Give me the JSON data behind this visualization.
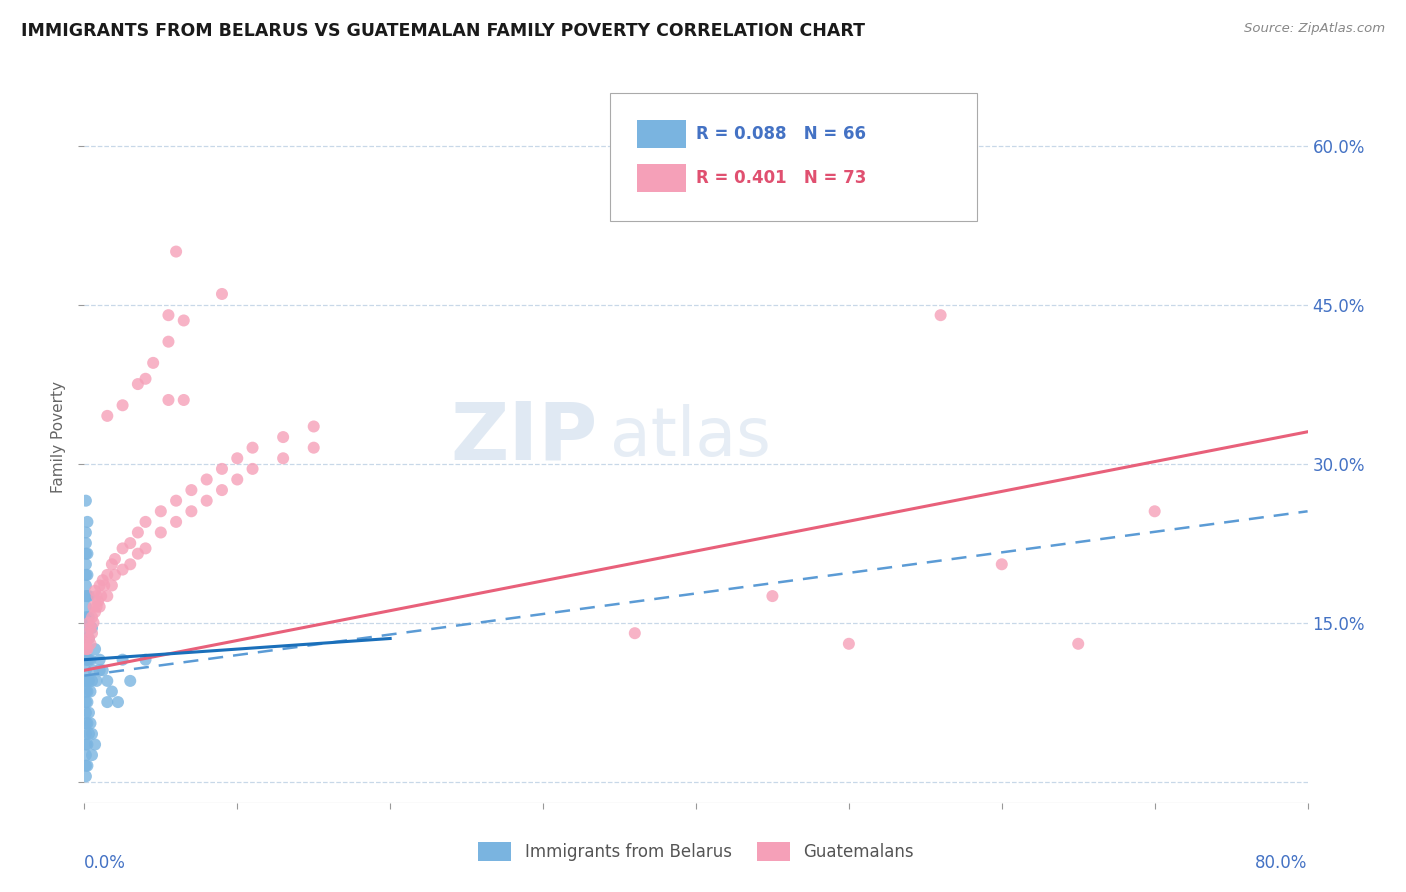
{
  "title": "IMMIGRANTS FROM BELARUS VS GUATEMALAN FAMILY POVERTY CORRELATION CHART",
  "source": "Source: ZipAtlas.com",
  "ylabel": "Family Poverty",
  "y_ticks": [
    0.0,
    0.15,
    0.3,
    0.45,
    0.6
  ],
  "y_tick_labels": [
    "",
    "15.0%",
    "30.0%",
    "45.0%",
    "60.0%"
  ],
  "x_range": [
    0.0,
    0.8
  ],
  "y_range": [
    -0.02,
    0.67
  ],
  "watermark_zip": "ZIP",
  "watermark_atlas": "atlas",
  "color_blue": "#7ab4e0",
  "color_pink": "#f5a0b8",
  "color_blue_line": "#5b9bd5",
  "color_pink_line": "#e8607a",
  "grid_color": "#c8d8e8",
  "tick_color": "#4472c4",
  "title_color": "#1a1a1a",
  "source_color": "#888888",
  "ylabel_color": "#666666",
  "blue_trend": [
    0.0,
    0.115,
    0.2,
    0.135
  ],
  "pink_trend": [
    0.0,
    0.105,
    0.8,
    0.33
  ],
  "blue_dash_trend": [
    0.0,
    0.1,
    0.8,
    0.255
  ],
  "scatter_blue": [
    [
      0.001,
      0.265
    ],
    [
      0.001,
      0.235
    ],
    [
      0.001,
      0.225
    ],
    [
      0.001,
      0.215
    ],
    [
      0.001,
      0.205
    ],
    [
      0.001,
      0.195
    ],
    [
      0.001,
      0.185
    ],
    [
      0.001,
      0.175
    ],
    [
      0.001,
      0.165
    ],
    [
      0.001,
      0.155
    ],
    [
      0.001,
      0.145
    ],
    [
      0.001,
      0.135
    ],
    [
      0.001,
      0.125
    ],
    [
      0.001,
      0.115
    ],
    [
      0.001,
      0.105
    ],
    [
      0.001,
      0.095
    ],
    [
      0.001,
      0.085
    ],
    [
      0.001,
      0.075
    ],
    [
      0.001,
      0.065
    ],
    [
      0.001,
      0.055
    ],
    [
      0.001,
      0.045
    ],
    [
      0.001,
      0.035
    ],
    [
      0.001,
      0.025
    ],
    [
      0.001,
      0.015
    ],
    [
      0.001,
      0.005
    ],
    [
      0.002,
      0.245
    ],
    [
      0.002,
      0.215
    ],
    [
      0.002,
      0.195
    ],
    [
      0.002,
      0.175
    ],
    [
      0.002,
      0.155
    ],
    [
      0.002,
      0.135
    ],
    [
      0.002,
      0.115
    ],
    [
      0.002,
      0.095
    ],
    [
      0.002,
      0.075
    ],
    [
      0.002,
      0.055
    ],
    [
      0.002,
      0.035
    ],
    [
      0.002,
      0.015
    ],
    [
      0.003,
      0.175
    ],
    [
      0.003,
      0.155
    ],
    [
      0.003,
      0.135
    ],
    [
      0.003,
      0.115
    ],
    [
      0.003,
      0.095
    ],
    [
      0.004,
      0.115
    ],
    [
      0.004,
      0.085
    ],
    [
      0.005,
      0.145
    ],
    [
      0.005,
      0.095
    ],
    [
      0.006,
      0.105
    ],
    [
      0.007,
      0.125
    ],
    [
      0.008,
      0.095
    ],
    [
      0.01,
      0.115
    ],
    [
      0.012,
      0.105
    ],
    [
      0.015,
      0.095
    ],
    [
      0.018,
      0.085
    ],
    [
      0.022,
      0.075
    ],
    [
      0.002,
      0.085
    ],
    [
      0.003,
      0.065
    ],
    [
      0.004,
      0.055
    ],
    [
      0.005,
      0.045
    ],
    [
      0.003,
      0.045
    ],
    [
      0.005,
      0.025
    ],
    [
      0.007,
      0.035
    ],
    [
      0.01,
      0.105
    ],
    [
      0.015,
      0.075
    ],
    [
      0.025,
      0.115
    ],
    [
      0.03,
      0.095
    ],
    [
      0.04,
      0.115
    ]
  ],
  "scatter_pink": [
    [
      0.001,
      0.13
    ],
    [
      0.001,
      0.125
    ],
    [
      0.002,
      0.14
    ],
    [
      0.002,
      0.125
    ],
    [
      0.003,
      0.15
    ],
    [
      0.003,
      0.135
    ],
    [
      0.004,
      0.145
    ],
    [
      0.004,
      0.13
    ],
    [
      0.005,
      0.155
    ],
    [
      0.005,
      0.14
    ],
    [
      0.006,
      0.165
    ],
    [
      0.006,
      0.15
    ],
    [
      0.007,
      0.18
    ],
    [
      0.007,
      0.16
    ],
    [
      0.008,
      0.175
    ],
    [
      0.008,
      0.165
    ],
    [
      0.009,
      0.17
    ],
    [
      0.01,
      0.185
    ],
    [
      0.01,
      0.165
    ],
    [
      0.011,
      0.175
    ],
    [
      0.012,
      0.19
    ],
    [
      0.013,
      0.185
    ],
    [
      0.015,
      0.195
    ],
    [
      0.015,
      0.175
    ],
    [
      0.018,
      0.205
    ],
    [
      0.018,
      0.185
    ],
    [
      0.02,
      0.21
    ],
    [
      0.02,
      0.195
    ],
    [
      0.025,
      0.22
    ],
    [
      0.025,
      0.2
    ],
    [
      0.03,
      0.225
    ],
    [
      0.03,
      0.205
    ],
    [
      0.035,
      0.235
    ],
    [
      0.035,
      0.215
    ],
    [
      0.04,
      0.245
    ],
    [
      0.04,
      0.22
    ],
    [
      0.05,
      0.255
    ],
    [
      0.05,
      0.235
    ],
    [
      0.06,
      0.265
    ],
    [
      0.06,
      0.245
    ],
    [
      0.07,
      0.275
    ],
    [
      0.07,
      0.255
    ],
    [
      0.08,
      0.285
    ],
    [
      0.08,
      0.265
    ],
    [
      0.09,
      0.295
    ],
    [
      0.09,
      0.275
    ],
    [
      0.1,
      0.305
    ],
    [
      0.1,
      0.285
    ],
    [
      0.11,
      0.315
    ],
    [
      0.11,
      0.295
    ],
    [
      0.13,
      0.325
    ],
    [
      0.13,
      0.305
    ],
    [
      0.15,
      0.335
    ],
    [
      0.15,
      0.315
    ],
    [
      0.025,
      0.355
    ],
    [
      0.035,
      0.375
    ],
    [
      0.045,
      0.395
    ],
    [
      0.055,
      0.415
    ],
    [
      0.065,
      0.435
    ],
    [
      0.06,
      0.5
    ],
    [
      0.04,
      0.38
    ],
    [
      0.015,
      0.345
    ],
    [
      0.09,
      0.46
    ],
    [
      0.055,
      0.44
    ],
    [
      0.055,
      0.36
    ],
    [
      0.065,
      0.36
    ],
    [
      0.36,
      0.14
    ],
    [
      0.45,
      0.175
    ],
    [
      0.5,
      0.13
    ],
    [
      0.6,
      0.205
    ],
    [
      0.65,
      0.13
    ],
    [
      0.7,
      0.255
    ],
    [
      0.56,
      0.44
    ]
  ]
}
